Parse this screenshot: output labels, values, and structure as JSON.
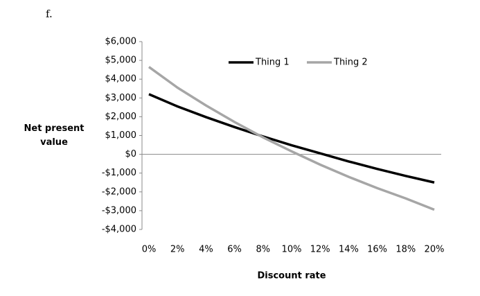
{
  "label": "f.",
  "chart_data": {
    "type": "line",
    "ylabel": "Net present value",
    "xlabel": "Discount rate",
    "categories": [
      "0%",
      "2%",
      "4%",
      "6%",
      "8%",
      "10%",
      "12%",
      "14%",
      "16%",
      "18%",
      "20%"
    ],
    "series": [
      {
        "name": "Thing 1",
        "color": "#000000",
        "values": [
          3200,
          2550,
          1980,
          1450,
          950,
          480,
          50,
          -380,
          -780,
          -1150,
          -1500
        ]
      },
      {
        "name": "Thing 2",
        "color": "#a6a6a6",
        "values": [
          4650,
          3550,
          2600,
          1720,
          900,
          160,
          -550,
          -1200,
          -1800,
          -2350,
          -2950
        ]
      }
    ],
    "ylim": [
      -4000,
      6000
    ],
    "yticks": [
      {
        "value": -4000,
        "label": "-$4,000"
      },
      {
        "value": -3000,
        "label": "-$3,000"
      },
      {
        "value": -2000,
        "label": "-$2,000"
      },
      {
        "value": -1000,
        "label": "-$1,000"
      },
      {
        "value": 0,
        "label": "$0"
      },
      {
        "value": 1000,
        "label": "$1,000"
      },
      {
        "value": 2000,
        "label": "$2,000"
      },
      {
        "value": 3000,
        "label": "$3,000"
      },
      {
        "value": 4000,
        "label": "$4,000"
      },
      {
        "value": 5000,
        "label": "$5,000"
      },
      {
        "value": 6000,
        "label": "$6,000"
      }
    ],
    "grid": false,
    "legend": "top"
  }
}
